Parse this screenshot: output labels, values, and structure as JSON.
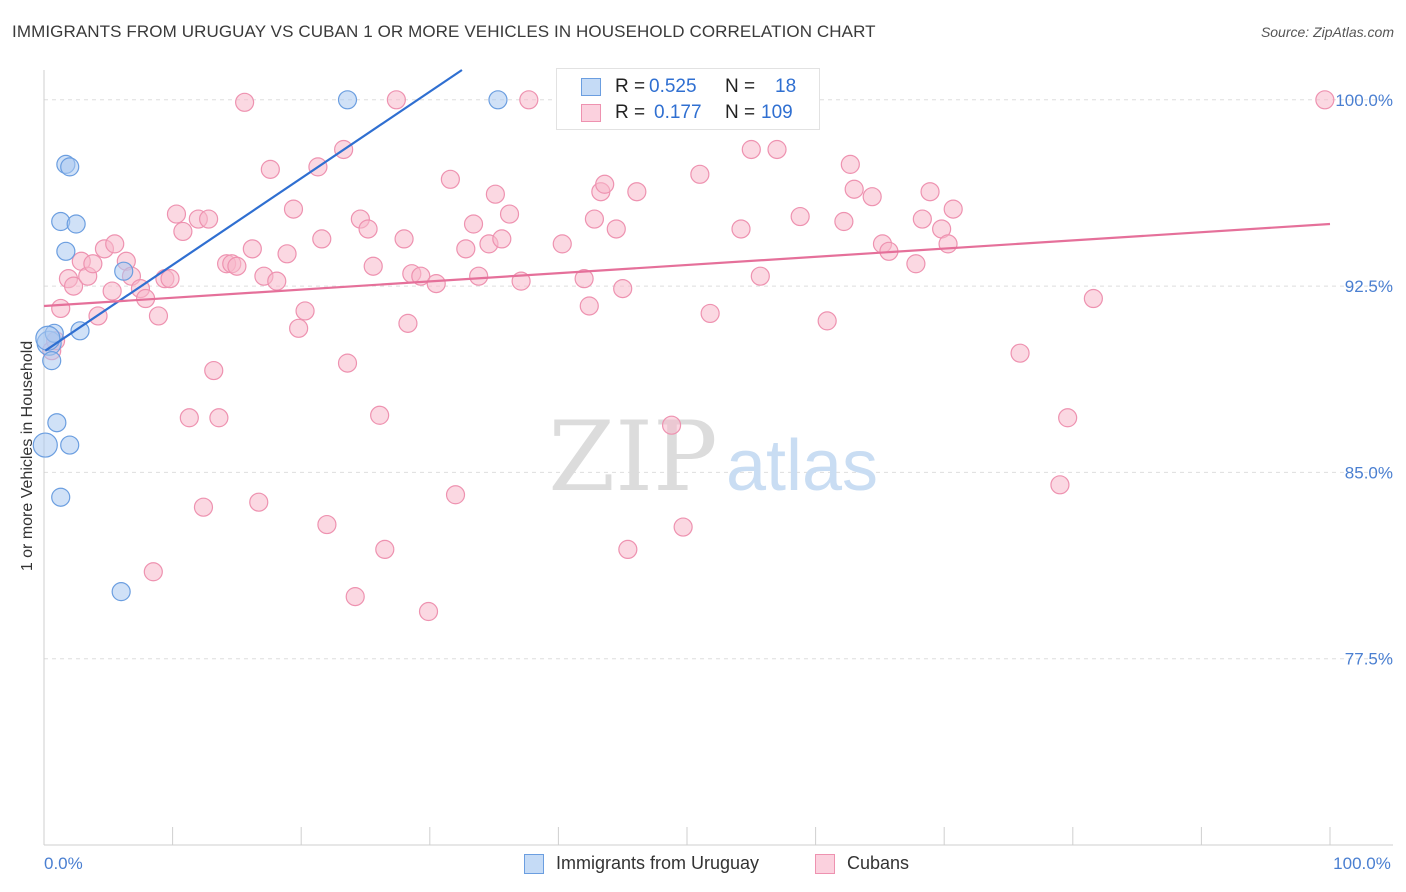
{
  "title": "IMMIGRANTS FROM URUGUAY VS CUBAN 1 OR MORE VEHICLES IN HOUSEHOLD CORRELATION CHART",
  "source": "Source: ZipAtlas.com",
  "watermark": {
    "zip": "ZIP",
    "atlas": "atlas"
  },
  "legend": {
    "r_label": "R =",
    "n_label": "N =",
    "rows": [
      {
        "r": "0.525",
        "n": "18",
        "color": "#a9c8f0"
      },
      {
        "r": "0.177",
        "n": "109",
        "color": "#f7b8cb"
      }
    ]
  },
  "bottom_legend": [
    "Immigrants from Uruguay",
    "Cubans"
  ],
  "chart_data": {
    "type": "scatter",
    "ylabel": "1 or more Vehicles in Household",
    "xlim": [
      0,
      100
    ],
    "ylim": [
      70.0,
      101.2
    ],
    "x_tick_labels": [
      {
        "value": 0,
        "label": "0.0%"
      },
      {
        "value": 100,
        "label": "100.0%"
      }
    ],
    "y_ticks": [
      {
        "value": 100.0,
        "label": "100.0%"
      },
      {
        "value": 92.5,
        "label": "92.5%"
      },
      {
        "value": 85.0,
        "label": "85.0%"
      },
      {
        "value": 77.5,
        "label": "77.5%"
      }
    ],
    "grid": "horizontal dashed",
    "series": [
      {
        "name": "Immigrants from Uruguay",
        "color": "#a9c8f0",
        "stroke": "#6b9ee0",
        "line_color": "#2f6fd1",
        "trend": {
          "x0": 0.1,
          "y0": 89.9,
          "x1": 32.5,
          "y1": 101.2
        },
        "points": [
          [
            0.1,
            86.1
          ],
          [
            0.4,
            90.2
          ],
          [
            0.6,
            89.5
          ],
          [
            0.8,
            90.6
          ],
          [
            1.0,
            87.0
          ],
          [
            1.3,
            84.0
          ],
          [
            1.3,
            95.1
          ],
          [
            1.7,
            93.9
          ],
          [
            1.7,
            97.4
          ],
          [
            2.0,
            86.1
          ],
          [
            2.0,
            97.3
          ],
          [
            2.5,
            95.0
          ],
          [
            2.8,
            90.7
          ],
          [
            6.2,
            93.1
          ],
          [
            6.0,
            80.2
          ],
          [
            23.6,
            100.0
          ],
          [
            35.3,
            100.0
          ],
          [
            0.3,
            90.4
          ]
        ]
      },
      {
        "name": "Cubans",
        "color": "#f7b8cb",
        "stroke": "#ee92b0",
        "line_color": "#e5709a",
        "trend": {
          "x0": 0,
          "y0": 91.7,
          "x1": 100,
          "y1": 95.0
        },
        "points": [
          [
            0.6,
            89.9
          ],
          [
            0.9,
            90.3
          ],
          [
            1.3,
            91.6
          ],
          [
            1.9,
            92.8
          ],
          [
            2.3,
            92.5
          ],
          [
            2.9,
            93.5
          ],
          [
            3.4,
            92.9
          ],
          [
            3.8,
            93.4
          ],
          [
            4.2,
            91.3
          ],
          [
            4.7,
            94.0
          ],
          [
            5.5,
            94.2
          ],
          [
            5.3,
            92.3
          ],
          [
            6.4,
            93.5
          ],
          [
            6.8,
            92.9
          ],
          [
            7.5,
            92.4
          ],
          [
            7.9,
            92.0
          ],
          [
            8.5,
            81.0
          ],
          [
            8.9,
            91.3
          ],
          [
            9.4,
            92.8
          ],
          [
            9.8,
            92.8
          ],
          [
            10.3,
            95.4
          ],
          [
            10.8,
            94.7
          ],
          [
            11.3,
            87.2
          ],
          [
            12.0,
            95.2
          ],
          [
            12.4,
            83.6
          ],
          [
            12.8,
            95.2
          ],
          [
            13.2,
            89.1
          ],
          [
            13.6,
            87.2
          ],
          [
            14.2,
            93.4
          ],
          [
            14.6,
            93.4
          ],
          [
            15.0,
            93.3
          ],
          [
            15.6,
            99.9
          ],
          [
            16.2,
            94.0
          ],
          [
            16.7,
            83.8
          ],
          [
            17.1,
            92.9
          ],
          [
            17.6,
            97.2
          ],
          [
            18.1,
            92.7
          ],
          [
            18.9,
            93.8
          ],
          [
            19.4,
            95.6
          ],
          [
            19.8,
            90.8
          ],
          [
            20.3,
            91.5
          ],
          [
            21.3,
            97.3
          ],
          [
            21.6,
            94.4
          ],
          [
            22.0,
            82.9
          ],
          [
            23.3,
            98.0
          ],
          [
            23.6,
            89.4
          ],
          [
            24.2,
            80.0
          ],
          [
            24.6,
            95.2
          ],
          [
            25.2,
            94.8
          ],
          [
            25.6,
            93.3
          ],
          [
            26.1,
            87.3
          ],
          [
            26.5,
            81.9
          ],
          [
            27.4,
            100.0
          ],
          [
            28.0,
            94.4
          ],
          [
            28.3,
            91.0
          ],
          [
            28.6,
            93.0
          ],
          [
            29.3,
            92.9
          ],
          [
            29.9,
            79.4
          ],
          [
            30.5,
            92.6
          ],
          [
            31.6,
            96.8
          ],
          [
            32.0,
            84.1
          ],
          [
            32.8,
            94.0
          ],
          [
            33.4,
            95.0
          ],
          [
            33.8,
            92.9
          ],
          [
            34.6,
            94.2
          ],
          [
            35.1,
            96.2
          ],
          [
            35.6,
            94.4
          ],
          [
            36.2,
            95.4
          ],
          [
            37.1,
            92.7
          ],
          [
            37.7,
            100.0
          ],
          [
            40.3,
            94.2
          ],
          [
            42.0,
            92.8
          ],
          [
            42.4,
            91.7
          ],
          [
            42.8,
            95.2
          ],
          [
            43.3,
            96.3
          ],
          [
            43.6,
            96.6
          ],
          [
            44.5,
            94.8
          ],
          [
            45.0,
            92.4
          ],
          [
            45.4,
            81.9
          ],
          [
            46.1,
            96.3
          ],
          [
            48.8,
            86.9
          ],
          [
            49.7,
            82.8
          ],
          [
            51.0,
            97.0
          ],
          [
            51.8,
            91.4
          ],
          [
            53.2,
            99.4
          ],
          [
            54.2,
            94.8
          ],
          [
            55.0,
            98.0
          ],
          [
            55.7,
            92.9
          ],
          [
            57.0,
            98.0
          ],
          [
            58.8,
            95.3
          ],
          [
            60.9,
            91.1
          ],
          [
            62.2,
            95.1
          ],
          [
            62.7,
            97.4
          ],
          [
            63.0,
            96.4
          ],
          [
            64.4,
            96.1
          ],
          [
            65.2,
            94.2
          ],
          [
            65.7,
            93.9
          ],
          [
            67.8,
            93.4
          ],
          [
            68.3,
            95.2
          ],
          [
            68.9,
            96.3
          ],
          [
            69.8,
            94.8
          ],
          [
            70.3,
            94.2
          ],
          [
            70.7,
            95.6
          ],
          [
            75.9,
            89.8
          ],
          [
            79.0,
            84.5
          ],
          [
            79.6,
            87.2
          ],
          [
            81.6,
            92.0
          ],
          [
            99.6,
            100.0
          ],
          [
            53.8,
            99.2
          ]
        ]
      }
    ]
  }
}
